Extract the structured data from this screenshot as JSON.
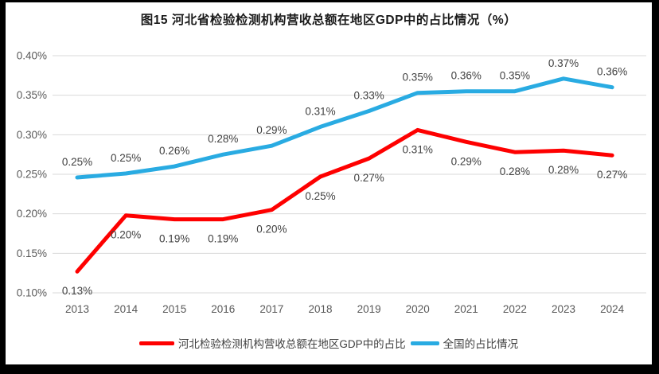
{
  "window": {
    "background": "#000000",
    "canvas_background": "#ffffff"
  },
  "chart_data": {
    "type": "line",
    "title": "图15 河北省检验检测机构营收总额在地区GDP中的占比情况（%）",
    "categories": [
      "2013",
      "2014",
      "2015",
      "2016",
      "2017",
      "2018",
      "2019",
      "2020",
      "2021",
      "2022",
      "2023",
      "2024"
    ],
    "xlabel": "",
    "ylabel": "",
    "grid": true,
    "legend_position": "bottom",
    "y_axis": {
      "min": 0.1,
      "max": 0.4,
      "unit": "%",
      "tick_labels": [
        "0.40%",
        "0.35%",
        "0.30%",
        "0.25%",
        "0.20%",
        "0.15%",
        "0.10%"
      ],
      "tick_values": [
        0.4,
        0.35,
        0.3,
        0.25,
        0.2,
        0.15,
        0.1
      ]
    },
    "series": [
      {
        "name": "河北检验检测机构营收总额在地区GDP中的占比",
        "color": "#fe0000",
        "line_width": 5,
        "label_position": "below",
        "labels": [
          "0.13%",
          "0.20%",
          "0.19%",
          "0.19%",
          "0.20%",
          "0.25%",
          "0.27%",
          "0.31%",
          "0.29%",
          "0.28%",
          "0.28%",
          "0.27%"
        ],
        "values": [
          0.13,
          0.2,
          0.19,
          0.19,
          0.2,
          0.25,
          0.27,
          0.31,
          0.29,
          0.28,
          0.28,
          0.27
        ],
        "plot_values": [
          0.127,
          0.198,
          0.193,
          0.193,
          0.205,
          0.247,
          0.27,
          0.306,
          0.291,
          0.278,
          0.28,
          0.274
        ]
      },
      {
        "name": "全国的占比情况",
        "color": "#29abe2",
        "line_width": 5,
        "label_position": "above",
        "labels": [
          "0.25%",
          "0.25%",
          "0.26%",
          "0.28%",
          "0.29%",
          "0.31%",
          "0.33%",
          "0.35%",
          "0.36%",
          "0.35%",
          "0.37%",
          "0.36%"
        ],
        "values": [
          0.25,
          0.25,
          0.26,
          0.28,
          0.29,
          0.31,
          0.33,
          0.35,
          0.36,
          0.35,
          0.37,
          0.36
        ],
        "plot_values": [
          0.246,
          0.251,
          0.26,
          0.275,
          0.286,
          0.31,
          0.33,
          0.353,
          0.355,
          0.355,
          0.371,
          0.36
        ]
      }
    ]
  }
}
